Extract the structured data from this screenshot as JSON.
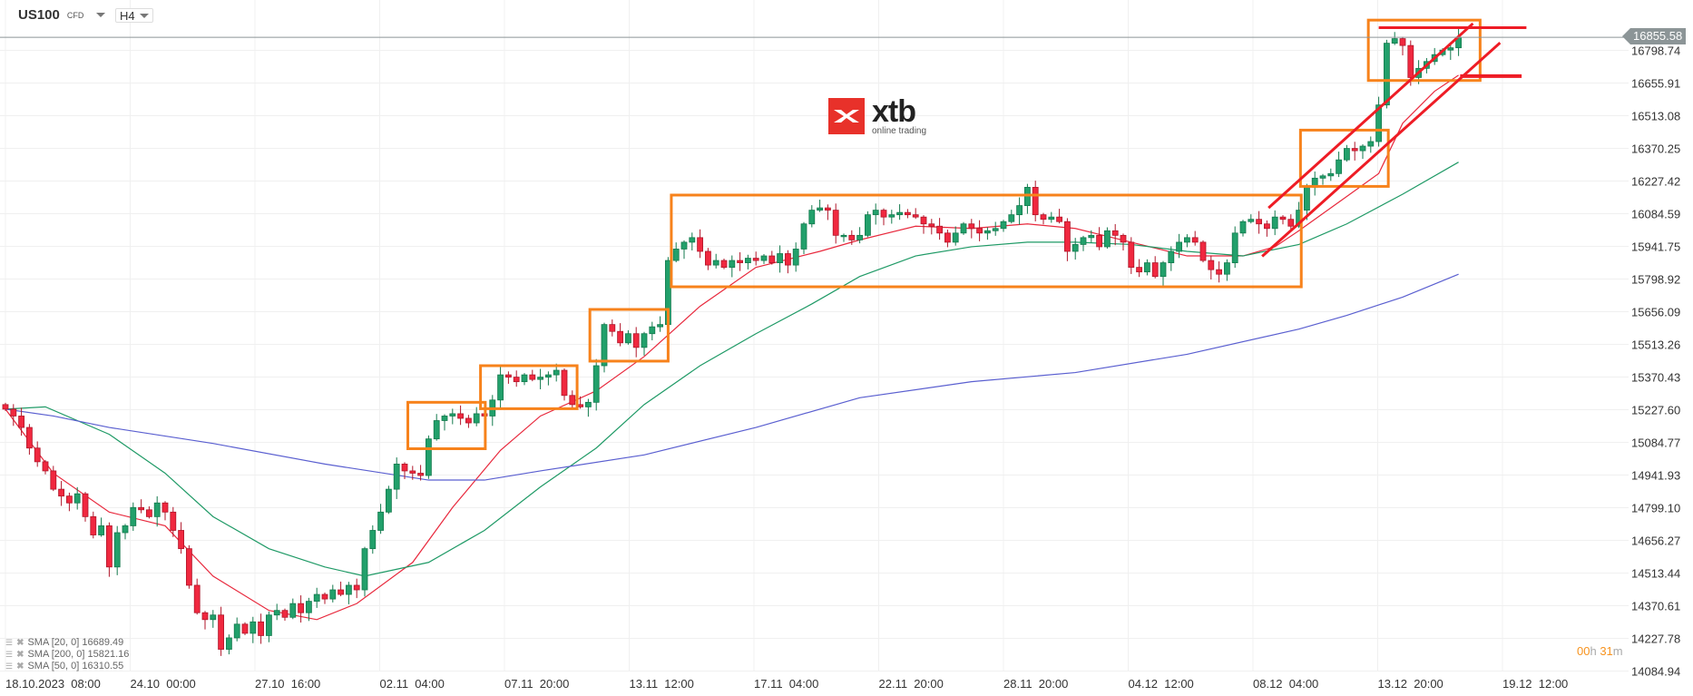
{
  "header": {
    "symbol": "US100",
    "instrument_type": "CFD",
    "timeframe": "H4"
  },
  "logo": {
    "brand": "xtb",
    "tagline": "online trading"
  },
  "legend": [
    {
      "label": "SMA [20, 0] 16689.49",
      "color": "#e8293d"
    },
    {
      "label": "SMA [200, 0] 15821.16",
      "color": "#5a5fd0"
    },
    {
      "label": "SMA [50, 0] 16310.55",
      "color": "#1f9a66"
    }
  ],
  "countdown": {
    "hours": "00",
    "h_unit": "h",
    "minutes": "31",
    "m_unit": "m"
  },
  "current_price": "16855.58",
  "colors": {
    "up": "#22a06b",
    "down": "#f0283f",
    "box": "#f7821b",
    "trend": "#ee1c25",
    "grid": "#f0f0f0",
    "price_line": "#8c9597"
  },
  "chart_data": {
    "type": "candlestick",
    "y_ticks": [
      "16798.74",
      "16655.91",
      "16513.08",
      "16370.25",
      "16227.42",
      "16084.59",
      "15941.75",
      "15798.92",
      "15656.09",
      "15513.26",
      "15370.43",
      "15227.60",
      "15084.77",
      "14941.93",
      "14799.10",
      "14656.27",
      "14513.44",
      "14370.61",
      "14227.78",
      "14084.94"
    ],
    "x_ticks": [
      "18.10.2023  08:00",
      "24.10  00:00",
      "27.10  16:00",
      "02.11  04:00",
      "07.11  20:00",
      "13.11  12:00",
      "17.11  04:00",
      "22.11  20:00",
      "28.11  20:00",
      "04.12  12:00",
      "08.12  04:00",
      "13.12  20:00",
      "19.12  12:00"
    ],
    "grid": true,
    "close": [
      15230,
      15200,
      15150,
      15060,
      15000,
      14960,
      14880,
      14850,
      14820,
      14860,
      14760,
      14680,
      14720,
      14540,
      14690,
      14720,
      14800,
      14790,
      14760,
      14820,
      14780,
      14700,
      14620,
      14460,
      14340,
      14310,
      14330,
      14180,
      14230,
      14290,
      14250,
      14300,
      14240,
      14330,
      14350,
      14320,
      14380,
      14340,
      14390,
      14420,
      14400,
      14440,
      14420,
      14460,
      14440,
      14620,
      14700,
      14780,
      14880,
      14990,
      14960,
      14950,
      14940,
      15100,
      15180,
      15200,
      15210,
      15190,
      15170,
      15210,
      15200,
      15270,
      15380,
      15370,
      15350,
      15380,
      15360,
      15370,
      15380,
      15400,
      15290,
      15250,
      15240,
      15260,
      15420,
      15600,
      15570,
      15520,
      15560,
      15500,
      15560,
      15590,
      15600,
      15880,
      15930,
      15960,
      15980,
      15920,
      15860,
      15880,
      15850,
      15880,
      15870,
      15890,
      15880,
      15900,
      15870,
      15910,
      15860,
      15930,
      16040,
      16100,
      16110,
      16100,
      15990,
      15990,
      15970,
      15990,
      16080,
      16100,
      16070,
      16080,
      16090,
      16080,
      16070,
      16040,
      16030,
      16000,
      15960,
      16000,
      16040,
      16020,
      16000,
      16010,
      16020,
      16050,
      16080,
      16120,
      16200,
      16080,
      16060,
      16070,
      16050,
      15920,
      15950,
      15980,
      15990,
      15940,
      16010,
      15990,
      15960,
      15850,
      15830,
      15870,
      15810,
      15870,
      15920,
      15960,
      15980,
      15960,
      15880,
      15840,
      15820,
      15870,
      16000,
      16050,
      16060,
      16040,
      16020,
      16070,
      16060,
      16030,
      16100,
      16200,
      16240,
      16250,
      16260,
      16320,
      16370,
      16360,
      16380,
      16400,
      16560,
      16830,
      16850,
      16820,
      16680,
      16720,
      16750,
      16780,
      16800,
      16810,
      16856
    ],
    "sma": [
      {
        "name": "SMA [20, 0]",
        "color": "#e8293d",
        "points": [
          [
            0,
            15230
          ],
          [
            6,
            14950
          ],
          [
            13,
            14780
          ],
          [
            20,
            14720
          ],
          [
            26,
            14500
          ],
          [
            33,
            14350
          ],
          [
            39,
            14310
          ],
          [
            44,
            14380
          ],
          [
            51,
            14560
          ],
          [
            56,
            14800
          ],
          [
            62,
            15050
          ],
          [
            67,
            15200
          ],
          [
            74,
            15310
          ],
          [
            80,
            15460
          ],
          [
            87,
            15680
          ],
          [
            94,
            15850
          ],
          [
            102,
            15920
          ],
          [
            107,
            15970
          ],
          [
            114,
            16030
          ],
          [
            121,
            16020
          ],
          [
            128,
            16040
          ],
          [
            134,
            16020
          ],
          [
            141,
            15960
          ],
          [
            148,
            15900
          ],
          [
            155,
            15900
          ],
          [
            159,
            15940
          ],
          [
            162,
            16010
          ],
          [
            168,
            16160
          ],
          [
            172,
            16260
          ],
          [
            175,
            16480
          ],
          [
            179,
            16620
          ],
          [
            182,
            16690
          ]
        ]
      },
      {
        "name": "SMA [50, 0]",
        "color": "#1f9a66",
        "points": [
          [
            0,
            15230
          ],
          [
            5,
            15240
          ],
          [
            13,
            15120
          ],
          [
            20,
            14950
          ],
          [
            26,
            14760
          ],
          [
            33,
            14620
          ],
          [
            40,
            14540
          ],
          [
            45,
            14500
          ],
          [
            53,
            14560
          ],
          [
            60,
            14700
          ],
          [
            67,
            14890
          ],
          [
            74,
            15060
          ],
          [
            80,
            15250
          ],
          [
            87,
            15420
          ],
          [
            94,
            15560
          ],
          [
            101,
            15690
          ],
          [
            107,
            15810
          ],
          [
            114,
            15900
          ],
          [
            121,
            15940
          ],
          [
            128,
            15960
          ],
          [
            134,
            15960
          ],
          [
            141,
            15950
          ],
          [
            148,
            15920
          ],
          [
            155,
            15900
          ],
          [
            162,
            15950
          ],
          [
            168,
            16040
          ],
          [
            175,
            16170
          ],
          [
            182,
            16310
          ]
        ]
      },
      {
        "name": "SMA [200, 0]",
        "color": "#5a5fd0",
        "points": [
          [
            0,
            15230
          ],
          [
            6,
            15200
          ],
          [
            13,
            15150
          ],
          [
            26,
            15080
          ],
          [
            40,
            14990
          ],
          [
            53,
            14920
          ],
          [
            60,
            14920
          ],
          [
            67,
            14960
          ],
          [
            80,
            15030
          ],
          [
            94,
            15150
          ],
          [
            107,
            15280
          ],
          [
            121,
            15350
          ],
          [
            134,
            15390
          ],
          [
            148,
            15470
          ],
          [
            162,
            15580
          ],
          [
            168,
            15640
          ],
          [
            175,
            15720
          ],
          [
            182,
            15820
          ]
        ]
      }
    ],
    "annotations": {
      "boxes": [
        [
          50.4,
          60.1,
          15057,
          15260
        ],
        [
          59.5,
          71.6,
          15232,
          15420
        ],
        [
          73.2,
          83,
          15440,
          15666
        ],
        [
          83.4,
          162.3,
          15765,
          16166
        ],
        [
          162.2,
          173.2,
          16204,
          16450
        ],
        [
          170.7,
          184.7,
          16667,
          16931
        ]
      ],
      "lines": [
        [
          172,
          16898,
          190.5,
          16898
        ],
        [
          182.2,
          16686,
          189.9,
          16686
        ],
        [
          158.2,
          16110,
          183.8,
          16916
        ],
        [
          157.4,
          15898,
          187.2,
          16832
        ]
      ]
    }
  }
}
